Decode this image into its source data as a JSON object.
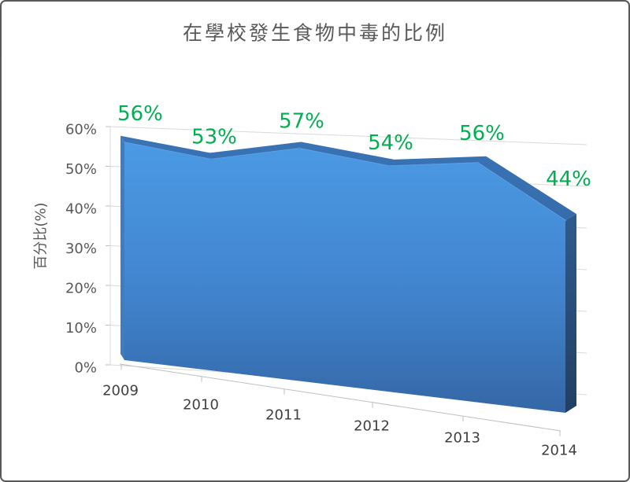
{
  "chart_data": {
    "type": "area",
    "three_d": true,
    "title": "在學校發生食物中毒的比例",
    "ylabel": "百分比(%)",
    "categories": [
      "2009",
      "2010",
      "2011",
      "2012",
      "2013",
      "2014"
    ],
    "values": [
      56,
      53,
      57,
      54,
      56,
      44
    ],
    "data_labels": [
      "56%",
      "53%",
      "57%",
      "54%",
      "56%",
      "44%"
    ],
    "ylim": [
      0,
      60
    ],
    "y_ticks": [
      "0%",
      "10%",
      "20%",
      "30%",
      "40%",
      "50%",
      "60%"
    ],
    "grid": true,
    "series_color": "#4184ce",
    "data_label_color": "#00b050",
    "text_color": "#595959"
  }
}
